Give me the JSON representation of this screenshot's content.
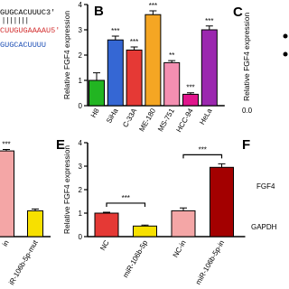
{
  "sequences": [
    "GUGCACUUUC3'",
    "CUUGUGAAAAU5'",
    "GUGCACUUUU"
  ],
  "panels": [
    "B",
    "C",
    "E",
    "F"
  ],
  "panel_c": {
    "tick": "0.0",
    "ylabel": "Relative FGF4 expression"
  },
  "panel_f": [
    "FGF4",
    "GAPDH"
  ],
  "chart_data": [
    {
      "type": "bar",
      "ylabel": "Relative FGF4 expression",
      "categories": [
        "H8",
        "SiHa",
        "C-33A",
        "ME-180",
        "MS-751",
        "HCC-94",
        "HeLa"
      ],
      "values": [
        1.0,
        2.6,
        2.2,
        3.6,
        1.7,
        0.45,
        3.0
      ],
      "errors": [
        0.3,
        0.15,
        0.12,
        0.15,
        0.08,
        0.06,
        0.15
      ],
      "colors": [
        "#22b522",
        "#3567d4",
        "#e53935",
        "#f5a623",
        "#f48fb1",
        "#e0158c",
        "#9b27af"
      ],
      "significance": [
        null,
        "***",
        "***",
        "***",
        "**",
        "***",
        "***"
      ],
      "ylim": [
        0,
        4
      ],
      "yticks": [
        0,
        1,
        2,
        3,
        4
      ]
    },
    {
      "type": "bar",
      "ylabel": "Relative FGF4 expression",
      "categories": [
        "NC",
        "miR-106b-5p",
        "NC-in",
        "miR-106b-5p-in"
      ],
      "values": [
        1.0,
        0.45,
        1.1,
        2.95
      ],
      "errors": [
        0.04,
        0.04,
        0.12,
        0.15
      ],
      "colors": [
        "#e53935",
        "#f7e000",
        "#f4a6a6",
        "#a30000"
      ],
      "comparisons": [
        {
          "pair": [
            "NC",
            "miR-106b-5p"
          ],
          "label": "***"
        },
        {
          "pair": [
            "NC-in",
            "miR-106b-5p-in"
          ],
          "label": "***"
        }
      ],
      "ylim": [
        0,
        4
      ],
      "yticks": [
        0,
        1,
        2,
        3,
        4
      ]
    },
    {
      "type": "bar",
      "categories": [
        "in",
        "iR-106b-5p-mut"
      ],
      "values": [
        3.65,
        1.1
      ],
      "errors": [
        0.06,
        0.08
      ],
      "colors": [
        "#f4a6a6",
        "#f7e000"
      ],
      "significance": [
        "***",
        null
      ],
      "ylim": [
        0,
        4
      ]
    }
  ]
}
